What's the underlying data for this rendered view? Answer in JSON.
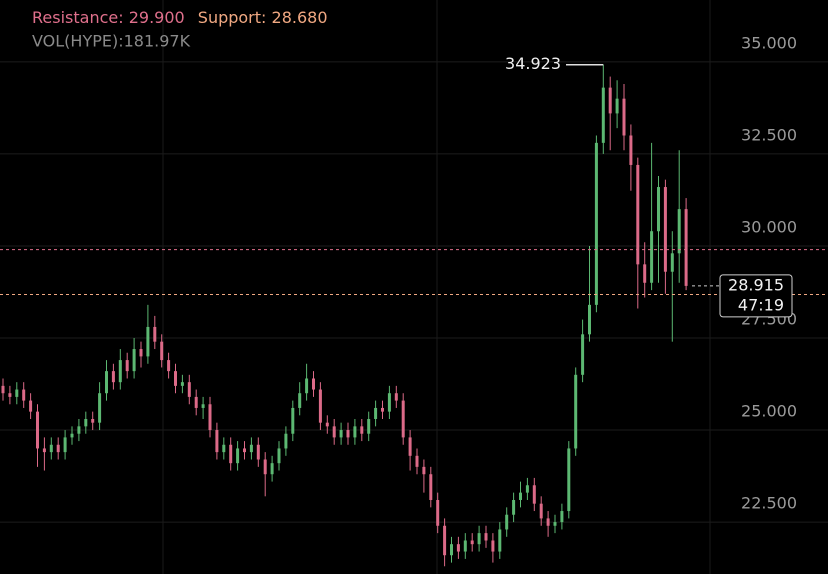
{
  "chart_data": {
    "type": "candlestick",
    "resistance": {
      "label": "Resistance:",
      "value": 29.9,
      "value_label": "29.900",
      "color": "#e0708c"
    },
    "support": {
      "label": "Support:",
      "value": 28.68,
      "value_label": "28.680",
      "color": "#f0a882"
    },
    "volume_text": "VOL(HYPE):181.97K",
    "ylim": [
      21.09,
      36.68
    ],
    "yticks": [
      {
        "value": 22.5,
        "label": "22.500"
      },
      {
        "value": 25,
        "label": "25.000"
      },
      {
        "value": 27.5,
        "label": "27.500"
      },
      {
        "value": 30,
        "label": "30.000"
      },
      {
        "value": 32.5,
        "label": "32.500"
      },
      {
        "value": 35,
        "label": "35.000"
      }
    ],
    "grid": true,
    "up_color": "#5cb872",
    "down_color": "#dc6a88",
    "high_annotation": {
      "value": 34.923,
      "label": "34.923"
    },
    "last_price": {
      "value": 28.915,
      "label": "28.915",
      "countdown": "47:19"
    },
    "open": [
      26.2,
      26.0,
      25.9,
      26.1,
      25.8,
      25.5,
      24.5,
      24.4,
      24.6,
      24.4,
      24.8,
      24.9,
      25.1,
      25.3,
      25.2,
      26.0,
      26.6,
      26.3,
      26.9,
      26.6,
      27.2,
      27.0,
      27.8,
      27.4,
      26.9,
      26.6,
      26.2,
      26.3,
      25.9,
      25.6,
      25.7,
      25.0,
      24.4,
      24.6,
      24.1,
      24.5,
      24.4,
      24.6,
      24.2,
      23.8,
      24.1,
      24.5,
      24.9,
      25.6,
      26.0,
      26.4,
      26.1,
      25.2,
      25.1,
      24.8,
      25.0,
      24.8,
      25.1,
      24.9,
      25.3,
      25.6,
      25.5,
      26.0,
      25.8,
      24.8,
      24.3,
      24.0,
      23.8,
      23.1,
      22.4,
      21.6,
      21.9,
      21.7,
      22.0,
      21.9,
      22.2,
      22.0,
      21.7,
      22.3,
      22.7,
      23.1,
      23.3,
      23.5,
      23.0,
      22.6,
      22.4,
      22.5,
      22.8,
      24.5,
      26.5,
      27.6,
      28.4,
      32.8,
      34.3,
      33.6,
      34.0,
      33.0,
      32.2,
      29.5,
      29.0,
      30.4,
      31.6,
      29.3,
      29.8,
      31.0
    ],
    "high": [
      26.4,
      26.2,
      26.3,
      26.3,
      26.0,
      25.7,
      24.8,
      24.8,
      24.8,
      25.0,
      25.1,
      25.3,
      25.5,
      25.5,
      26.3,
      26.9,
      26.8,
      27.2,
      27.1,
      27.5,
      27.4,
      28.4,
      28.1,
      27.6,
      27.1,
      26.8,
      26.5,
      26.5,
      26.1,
      25.9,
      25.9,
      25.2,
      24.8,
      24.8,
      24.7,
      24.7,
      24.8,
      24.8,
      24.4,
      24.3,
      24.7,
      25.1,
      25.8,
      26.3,
      26.8,
      26.6,
      26.3,
      25.4,
      25.3,
      25.2,
      25.2,
      25.3,
      25.3,
      25.5,
      25.8,
      25.8,
      26.2,
      26.2,
      26.0,
      25.0,
      24.5,
      24.2,
      24.0,
      23.3,
      22.6,
      22.1,
      22.1,
      22.2,
      22.2,
      22.4,
      22.4,
      22.2,
      22.5,
      22.9,
      23.3,
      23.6,
      23.7,
      23.7,
      23.2,
      22.8,
      22.7,
      23.0,
      24.7,
      26.7,
      28.0,
      30.0,
      33.0,
      34.923,
      34.6,
      34.5,
      34.4,
      33.3,
      32.4,
      30.1,
      32.8,
      31.9,
      31.8,
      30.4,
      32.6,
      31.3
    ],
    "low": [
      25.8,
      25.7,
      25.7,
      25.6,
      25.3,
      24.0,
      23.9,
      24.2,
      24.2,
      24.2,
      24.6,
      24.7,
      24.9,
      25.0,
      25.0,
      25.8,
      26.1,
      26.1,
      26.4,
      26.4,
      26.7,
      26.8,
      27.2,
      26.7,
      26.4,
      26.0,
      26.0,
      25.7,
      25.4,
      25.3,
      24.8,
      24.2,
      24.2,
      23.9,
      23.9,
      24.2,
      24.2,
      24.0,
      23.2,
      23.6,
      23.9,
      24.3,
      24.7,
      25.4,
      25.8,
      25.9,
      25.0,
      24.9,
      24.6,
      24.6,
      24.6,
      24.6,
      24.7,
      24.7,
      25.1,
      25.3,
      25.3,
      25.6,
      24.6,
      23.9,
      23.8,
      23.3,
      22.9,
      22.2,
      21.3,
      21.4,
      21.5,
      21.5,
      21.7,
      21.7,
      21.8,
      21.4,
      21.5,
      22.1,
      22.5,
      22.9,
      23.1,
      22.8,
      22.4,
      22.1,
      22.2,
      22.3,
      22.6,
      24.3,
      26.3,
      27.4,
      28.2,
      32.5,
      32.6,
      33.2,
      32.6,
      31.5,
      28.3,
      28.6,
      28.8,
      29.0,
      28.7,
      27.4,
      29.0,
      28.8
    ],
    "close": [
      26.0,
      25.9,
      26.1,
      25.8,
      25.5,
      24.5,
      24.4,
      24.6,
      24.4,
      24.8,
      24.9,
      25.1,
      25.3,
      25.2,
      26.0,
      26.6,
      26.3,
      26.9,
      26.6,
      27.2,
      27.0,
      27.8,
      27.4,
      26.9,
      26.6,
      26.2,
      26.3,
      25.9,
      25.6,
      25.7,
      25.0,
      24.4,
      24.6,
      24.1,
      24.5,
      24.4,
      24.6,
      24.2,
      23.8,
      24.1,
      24.5,
      24.9,
      25.6,
      26.0,
      26.4,
      26.1,
      25.2,
      25.1,
      24.8,
      25.0,
      24.8,
      25.1,
      24.9,
      25.3,
      25.6,
      25.5,
      26.0,
      25.8,
      24.8,
      24.3,
      24.0,
      23.8,
      23.1,
      22.4,
      21.6,
      21.9,
      21.7,
      22.0,
      21.9,
      22.2,
      22.0,
      21.7,
      22.3,
      22.7,
      23.1,
      23.3,
      23.5,
      23.0,
      22.6,
      22.4,
      22.5,
      22.8,
      24.5,
      26.5,
      27.6,
      28.4,
      32.8,
      34.3,
      33.6,
      34.0,
      33.0,
      32.2,
      29.5,
      29.0,
      30.4,
      31.6,
      29.3,
      29.8,
      31.0,
      28.915
    ]
  }
}
